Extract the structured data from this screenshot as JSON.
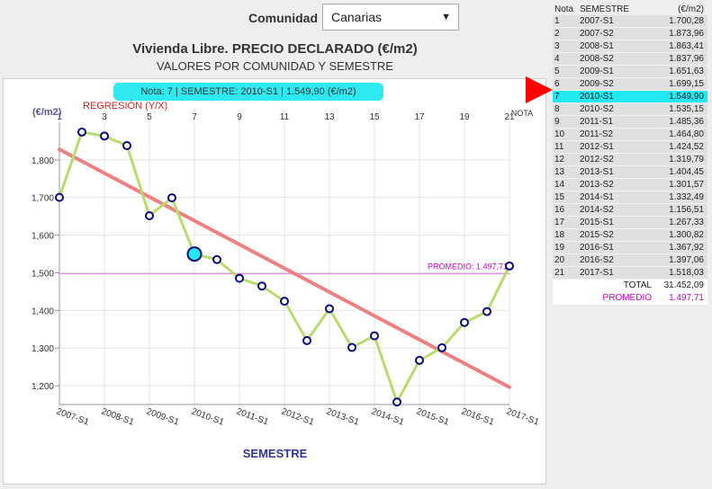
{
  "selector": {
    "label": "Comunidad",
    "value": "Canarias",
    "arrow": "▼"
  },
  "title": "Vivienda Libre. PRECIO DECLARADO (€/m2)",
  "subtitle": "VALORES POR COMUNIDAD Y SEMESTRE",
  "tooltip": "Nota: 7 | SEMESTRE: 2010-S1 | 1.549,90 (€/m2)",
  "regression_label": "REGRESIÓN (Y/X)",
  "table": {
    "headers": [
      "Nota",
      "SEMESTRE",
      "(€/m2)"
    ],
    "rows": [
      {
        "nota": "1",
        "semestre": "2007-S1",
        "valor": "1.700,28"
      },
      {
        "nota": "2",
        "semestre": "2007-S2",
        "valor": "1.873,96"
      },
      {
        "nota": "3",
        "semestre": "2008-S1",
        "valor": "1.863,41"
      },
      {
        "nota": "4",
        "semestre": "2008-S2",
        "valor": "1.837,96"
      },
      {
        "nota": "5",
        "semestre": "2009-S1",
        "valor": "1.651,63"
      },
      {
        "nota": "6",
        "semestre": "2009-S2",
        "valor": "1.699,15"
      },
      {
        "nota": "7",
        "semestre": "2010-S1",
        "valor": "1.549,90"
      },
      {
        "nota": "8",
        "semestre": "2010-S2",
        "valor": "1.535,15"
      },
      {
        "nota": "9",
        "semestre": "2011-S1",
        "valor": "1.485,36"
      },
      {
        "nota": "10",
        "semestre": "2011-S2",
        "valor": "1.464,80"
      },
      {
        "nota": "11",
        "semestre": "2012-S1",
        "valor": "1.424,52"
      },
      {
        "nota": "12",
        "semestre": "2012-S2",
        "valor": "1.319,79"
      },
      {
        "nota": "13",
        "semestre": "2013-S1",
        "valor": "1.404,45"
      },
      {
        "nota": "14",
        "semestre": "2013-S2",
        "valor": "1.301,57"
      },
      {
        "nota": "15",
        "semestre": "2014-S1",
        "valor": "1.332,49"
      },
      {
        "nota": "16",
        "semestre": "2014-S2",
        "valor": "1.156,51"
      },
      {
        "nota": "17",
        "semestre": "2015-S1",
        "valor": "1.267,33"
      },
      {
        "nota": "18",
        "semestre": "2015-S2",
        "valor": "1.300,82"
      },
      {
        "nota": "19",
        "semestre": "2016-S1",
        "valor": "1.367,92"
      },
      {
        "nota": "20",
        "semestre": "2016-S2",
        "valor": "1.397,06"
      },
      {
        "nota": "21",
        "semestre": "2017-S1",
        "valor": "1.518,03"
      }
    ],
    "selected_index": 6,
    "total_label": "TOTAL",
    "total_value": "31.452,09",
    "promedio_label": "PROMEDIO",
    "promedio_value": "1.497,71"
  },
  "colors": {
    "series_line": "#b8dc6c",
    "series_marker": "#0a0a80",
    "regression": "#f08080",
    "average": "#ee88ee",
    "highlight": "#22e8ef",
    "marker_arrow": "#ff0000"
  },
  "chart_data": {
    "type": "line",
    "x": [
      1,
      2,
      3,
      4,
      5,
      6,
      7,
      8,
      9,
      10,
      11,
      12,
      13,
      14,
      15,
      16,
      17,
      18,
      19,
      20,
      21
    ],
    "series": [
      {
        "values": [
          1700.28,
          1873.96,
          1863.41,
          1837.96,
          1651.63,
          1699.15,
          1549.9,
          1535.15,
          1485.36,
          1464.8,
          1424.52,
          1319.79,
          1404.45,
          1301.57,
          1332.49,
          1156.51,
          1267.33,
          1300.82,
          1367.92,
          1397.06,
          1518.03
        ]
      }
    ],
    "highlight_index": 6,
    "regression": {
      "label": "REGRESIÓN (Y/X)",
      "start": [
        1,
        1828
      ],
      "end": [
        21,
        1196
      ]
    },
    "average": {
      "label": "PROMEDIO: 1.497,71",
      "value": 1497.71
    },
    "ylabel": "(€/m2)",
    "xlabel": "SEMESTRE",
    "x_axis_title_top": "NOTA",
    "xlim": [
      1,
      21
    ],
    "ylim": [
      1150,
      1900
    ],
    "x_top_ticks": [
      1,
      3,
      5,
      7,
      9,
      11,
      13,
      15,
      17,
      19,
      21
    ],
    "x_top_tick_labels": [
      "1",
      "3",
      "5",
      "7",
      "9",
      "11",
      "13",
      "15",
      "17",
      "19",
      "21"
    ],
    "y_ticks": [
      1200,
      1300,
      1400,
      1500,
      1600,
      1700,
      1800
    ],
    "y_tick_labels": [
      "1,200",
      "1,300",
      "1,400",
      "1,500",
      "1,600",
      "1,700",
      "1,800"
    ],
    "x_bottom_ticks": [
      1,
      3,
      5,
      7,
      9,
      11,
      13,
      15,
      17,
      19,
      21
    ],
    "x_bottom_tick_labels": [
      "2007-S1",
      "2008-S1",
      "2009-S1",
      "2010-S1",
      "2011-S1",
      "2012-S1",
      "2013-S1",
      "2014-S1",
      "2015-S1",
      "2016-S1",
      "2017-S1"
    ],
    "grid": true
  }
}
